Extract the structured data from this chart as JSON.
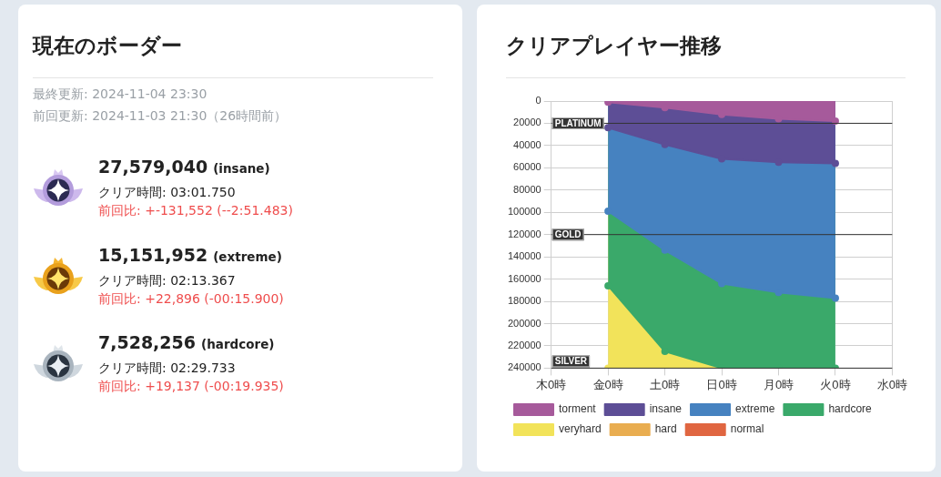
{
  "chart_data": [
    {
      "type": "other",
      "title": "現在のボーダー",
      "annotations": [
        "最終更新: 2024-11-04 23:30",
        "前回更新: 2024-11-03 21:30（26時間前）",
        "27,579,040",
        "(insane)",
        "クリア時間: 03:01.750",
        "前回比: +-131,552 (--2:51.483)",
        "15,151,952",
        "(extreme)",
        "クリア時間: 02:13.367",
        "前回比: +22,896 (-00:15.900)",
        "7,528,256",
        "(hardcore)",
        "クリア時間: 02:29.733",
        "前回比: +19,137 (-00:19.935)"
      ]
    },
    {
      "type": "area",
      "title": "クリアプレイヤー推移",
      "categories": [
        "木0時",
        "金0時",
        "土0時",
        "日0時",
        "月0時",
        "火0時",
        "水0時"
      ],
      "ylim": [
        240000,
        0
      ],
      "yticks": [
        0,
        20000,
        40000,
        60000,
        80000,
        100000,
        120000,
        140000,
        160000,
        180000,
        200000,
        220000,
        240000
      ],
      "grid": true,
      "legend": "bottom left",
      "marker": "circle",
      "ref_lines": [
        {
          "axis": "y",
          "value": 20000,
          "label": "PLATINUM"
        },
        {
          "axis": "y",
          "value": 120000,
          "label": "GOLD"
        },
        {
          "axis": "y",
          "value": 240000,
          "label": "SILVER"
        }
      ],
      "series": [
        {
          "name": "torment",
          "color": "#a65a9b",
          "values": [
            null,
            1000,
            6000,
            12000,
            16000,
            18000,
            null
          ]
        },
        {
          "name": "insane",
          "color": "#5d4e96",
          "values": [
            null,
            24000,
            39000,
            52000,
            55000,
            56000,
            null
          ]
        },
        {
          "name": "extreme",
          "color": "#4682c0",
          "values": [
            null,
            99000,
            134000,
            164000,
            172000,
            177000,
            null
          ]
        },
        {
          "name": "hardcore",
          "color": "#3aa96a",
          "values": [
            null,
            166000,
            225000,
            240000,
            240000,
            240000,
            null
          ]
        },
        {
          "name": "veryhard",
          "color": "#f2e35a",
          "values": [
            null,
            240000,
            240000,
            240000,
            null,
            null,
            null
          ]
        },
        {
          "name": "hard",
          "color": "#e9ad50",
          "values": [
            null,
            null,
            null,
            null,
            null,
            null,
            null
          ]
        },
        {
          "name": "normal",
          "color": "#e06641",
          "values": [
            null,
            null,
            null,
            null,
            null,
            null,
            null
          ]
        }
      ]
    }
  ]
}
